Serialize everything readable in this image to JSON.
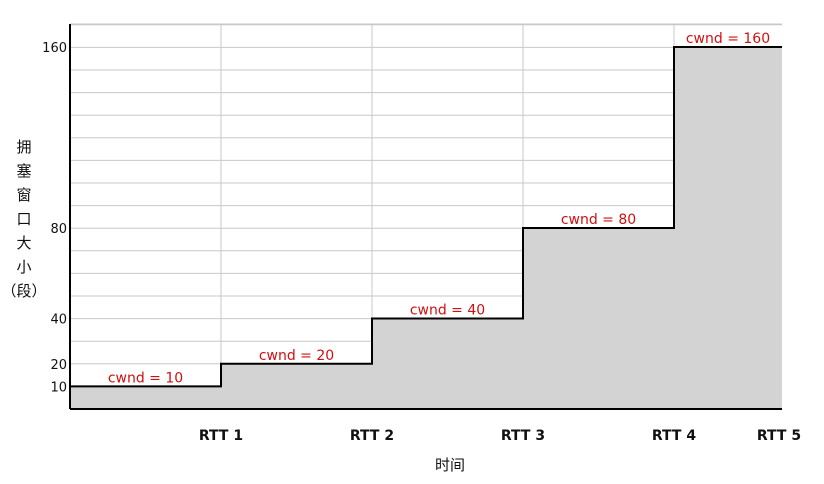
{
  "chart_data": {
    "type": "area",
    "step": "post",
    "x": [
      0,
      1,
      2,
      3,
      4,
      5
    ],
    "categories": [
      "",
      "RTT 1",
      "RTT 2",
      "RTT 3",
      "RTT 4",
      "RTT 5"
    ],
    "values": [
      10,
      20,
      40,
      80,
      160,
      160
    ],
    "segment_labels": [
      "cwnd = 10",
      "cwnd = 20",
      "cwnd = 40",
      "cwnd = 80",
      "cwnd = 160"
    ],
    "xlabel": "时间",
    "ylabel": "拥塞窗口大小（段）",
    "ylabel_chars": [
      "拥",
      "塞",
      "窗",
      "口",
      "大",
      "小",
      "（段）"
    ],
    "yticks": [
      10,
      20,
      40,
      80,
      160
    ],
    "xlim": [
      0,
      4.73
    ],
    "ylim": [
      0,
      170
    ],
    "grid": true,
    "colors": {
      "fill": "#d3d3d3",
      "line": "#000000",
      "label": "#d01010",
      "grid": "#c8c8c8"
    }
  }
}
